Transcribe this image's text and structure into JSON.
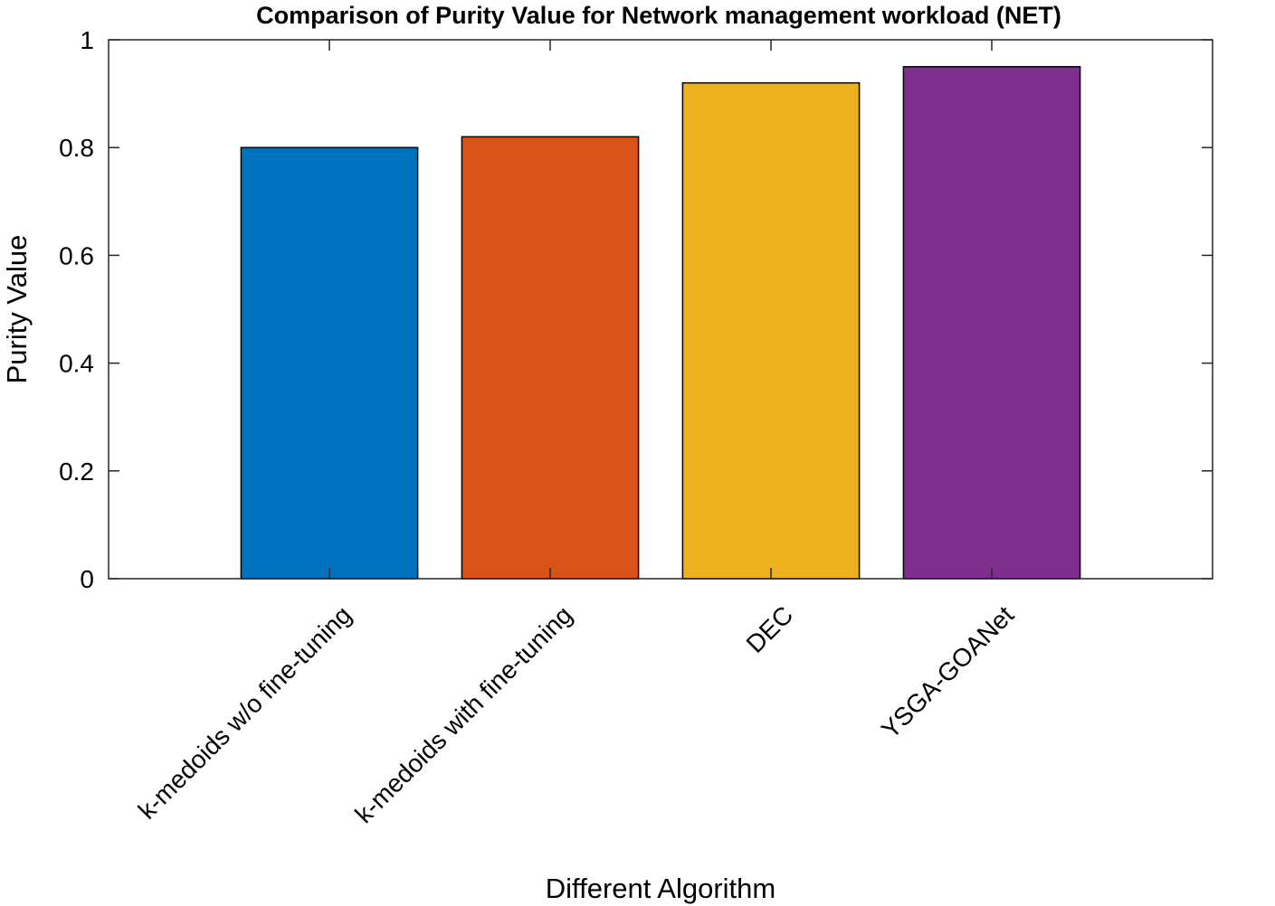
{
  "chart_data": {
    "type": "bar",
    "title": "Comparison of Purity Value for Network management workload (NET)",
    "xlabel": "Different Algorithm",
    "ylabel": "Purity Value",
    "categories": [
      "k-medoids w/o fine-tuning",
      "k-medoids with fine-tuning",
      "DEC",
      "YSGA-GOANet"
    ],
    "values": [
      0.8,
      0.82,
      0.92,
      0.95
    ],
    "colors": [
      "#0072BD",
      "#D95319",
      "#EDB120",
      "#7E2F8E"
    ],
    "ylim": [
      0,
      1
    ],
    "yticks": [
      "0",
      "0.2",
      "0.4",
      "0.6",
      "0.8",
      "1"
    ],
    "grid": false,
    "box": true
  }
}
